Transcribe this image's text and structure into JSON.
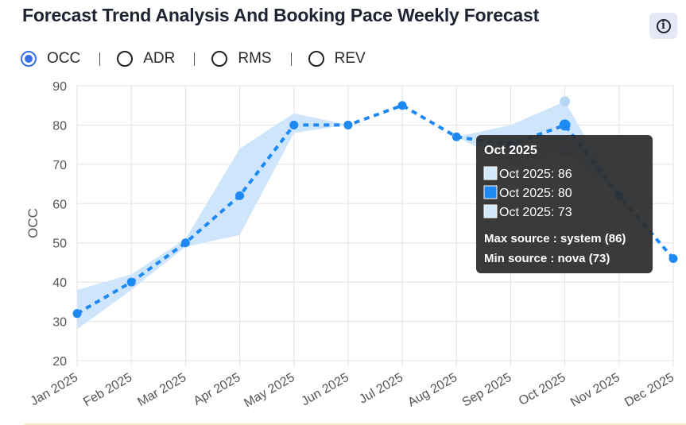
{
  "title": "Forecast Trend Analysis And Booking Pace Weekly Forecast",
  "info_icon": "info-icon",
  "metrics": [
    {
      "label": "OCC",
      "selected": true
    },
    {
      "label": "ADR",
      "selected": false
    },
    {
      "label": "RMS",
      "selected": false
    },
    {
      "label": "REV",
      "selected": false
    }
  ],
  "colors": {
    "line": "#1e88f5",
    "band": "#cfe5fb",
    "tooltip_bg": "#2b2b2b",
    "accent": "#3a6fe8"
  },
  "chart_data": {
    "type": "line",
    "ylabel": "OCC",
    "xlabel": "",
    "ylim": [
      20,
      90
    ],
    "yticks": [
      20,
      30,
      40,
      50,
      60,
      70,
      80,
      90
    ],
    "grid": true,
    "categories": [
      "Jan 2025",
      "Feb 2025",
      "Mar 2025",
      "Apr 2025",
      "May 2025",
      "Jun 2025",
      "Jul 2025",
      "Aug 2025",
      "Sep 2025",
      "Oct 2025",
      "Nov 2025",
      "Dec 2025"
    ],
    "series": [
      {
        "values": [
          32,
          40,
          50,
          62,
          80,
          80,
          85,
          77,
          75,
          80,
          62,
          46
        ],
        "style": "dashed-line"
      }
    ],
    "band_upper": [
      38,
      42,
      51,
      74,
      83,
      80,
      85,
      77,
      80,
      86,
      62,
      46
    ],
    "band_lower": [
      28,
      38,
      49,
      52,
      78,
      80,
      85,
      77,
      70,
      73,
      62,
      46
    ],
    "tooltip": {
      "title": "Oct 2025",
      "index": 9,
      "rows": [
        {
          "text": "Oct 2025: 86",
          "value": 86
        },
        {
          "text": "Oct 2025: 80",
          "value": 80
        },
        {
          "text": "Oct 2025: 73",
          "value": 73
        }
      ],
      "max_line": "Max source : system (86)",
      "min_line": "Min source : nova (73)"
    }
  }
}
